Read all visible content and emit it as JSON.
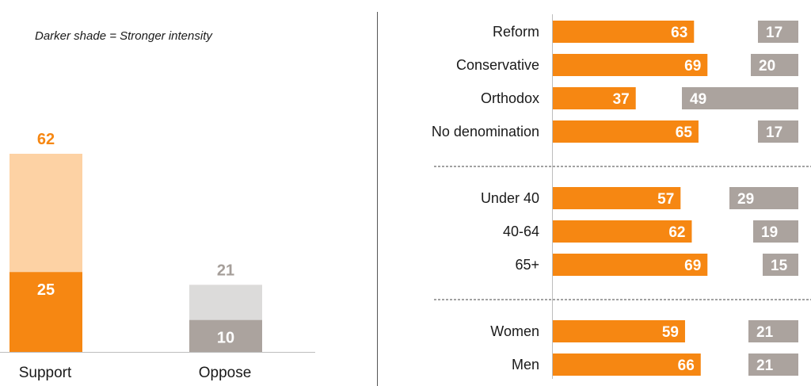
{
  "note": "Darker shade = Stronger intensity",
  "colors": {
    "support_strong": "#F68712",
    "support_light": "#FDD2A4",
    "oppose_strong": "#ABA39E",
    "oppose_light": "#DCDBDA",
    "label_oppose_total": "#A59E99",
    "label_support_total": "#F68712"
  },
  "chart_data": [
    {
      "type": "bar",
      "subtype": "stacked",
      "categories": [
        "Support",
        "Oppose"
      ],
      "totals": [
        62,
        21
      ],
      "strong": [
        25,
        10
      ],
      "legend_note": "Darker shade = Stronger intensity",
      "ylim": [
        0,
        62
      ]
    },
    {
      "type": "bar",
      "orientation": "horizontal",
      "groups": [
        [
          "Reform",
          "Conservative",
          "Orthodox",
          "No denomination"
        ],
        [
          "Under 40",
          "40-64",
          "65+"
        ],
        [
          "Women",
          "Men"
        ]
      ],
      "categories": [
        "Reform",
        "Conservative",
        "Orthodox",
        "No denomination",
        "Under 40",
        "40-64",
        "65+",
        "Women",
        "Men"
      ],
      "support": [
        63,
        69,
        37,
        65,
        57,
        62,
        69,
        59,
        66
      ],
      "oppose": [
        17,
        20,
        49,
        17,
        29,
        19,
        15,
        21,
        21
      ]
    }
  ]
}
